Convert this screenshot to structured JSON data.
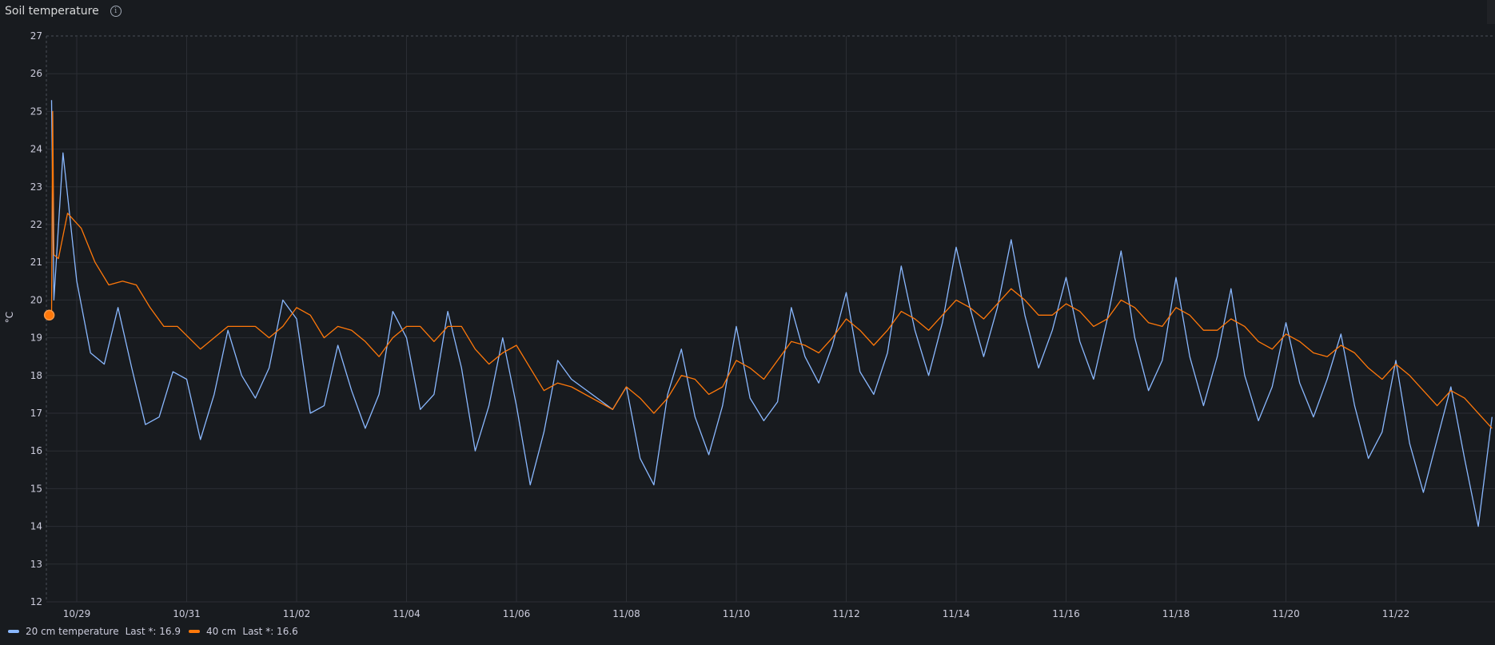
{
  "panel": {
    "title": "Soil temperature",
    "info_icon": "info-circle-icon"
  },
  "chart_data": {
    "type": "line",
    "title": "Soil temperature",
    "xlabel": "",
    "ylabel": "°C",
    "ylim": [
      12,
      27
    ],
    "y_ticks": [
      "27",
      "26",
      "25",
      "24",
      "23",
      "22",
      "21",
      "20",
      "19",
      "18",
      "17",
      "16",
      "15",
      "14",
      "13",
      "12"
    ],
    "x_ticks": [
      "10/29",
      "10/31",
      "11/02",
      "11/04",
      "11/06",
      "11/08",
      "11/10",
      "11/12",
      "11/14",
      "11/16",
      "11/18",
      "11/20",
      "11/22"
    ],
    "grid": true,
    "legend_position": "bottom-left",
    "colors": {
      "series_1": "#8ab8ff",
      "series_2": "#ff780a",
      "grid": "#2b2e34",
      "axis_text": "#ccccdc"
    },
    "series": [
      {
        "name": "20 cm temperature",
        "legend_last": "Last *: 16.9",
        "color": "#8ab8ff",
        "x": [
          "10/28 13:00",
          "10/28 14:00",
          "10/28 18:00",
          "10/29 00:00",
          "10/29 06:00",
          "10/29 12:00",
          "10/29 18:00",
          "10/30 00:00",
          "10/30 06:00",
          "10/30 12:00",
          "10/30 18:00",
          "10/31 00:00",
          "10/31 06:00",
          "10/31 12:00",
          "10/31 18:00",
          "11/01 00:00",
          "11/01 06:00",
          "11/01 12:00",
          "11/01 18:00",
          "11/02 00:00",
          "11/02 06:00",
          "11/02 12:00",
          "11/02 18:00",
          "11/03 00:00",
          "11/03 06:00",
          "11/03 12:00",
          "11/03 18:00",
          "11/04 00:00",
          "11/04 06:00",
          "11/04 12:00",
          "11/04 18:00",
          "11/05 00:00",
          "11/05 06:00",
          "11/05 12:00",
          "11/05 18:00",
          "11/06 00:00",
          "11/06 06:00",
          "11/06 12:00",
          "11/06 18:00",
          "11/07 00:00",
          "11/07 18:00",
          "11/08 00:00",
          "11/08 06:00",
          "11/08 12:00",
          "11/08 18:00",
          "11/09 00:00",
          "11/09 06:00",
          "11/09 12:00",
          "11/09 18:00",
          "11/10 00:00",
          "11/10 06:00",
          "11/10 12:00",
          "11/10 18:00",
          "11/11 00:00",
          "11/11 06:00",
          "11/11 12:00",
          "11/11 18:00",
          "11/12 00:00",
          "11/12 06:00",
          "11/12 12:00",
          "11/12 18:00",
          "11/13 00:00",
          "11/13 06:00",
          "11/13 12:00",
          "11/13 18:00",
          "11/14 00:00",
          "11/14 06:00",
          "11/14 12:00",
          "11/14 18:00",
          "11/15 00:00",
          "11/15 06:00",
          "11/15 12:00",
          "11/15 18:00",
          "11/16 00:00",
          "11/16 06:00",
          "11/16 12:00",
          "11/16 18:00",
          "11/17 00:00",
          "11/17 06:00",
          "11/17 12:00",
          "11/17 18:00",
          "11/18 00:00",
          "11/18 06:00",
          "11/18 12:00",
          "11/18 18:00",
          "11/19 00:00",
          "11/19 06:00",
          "11/19 12:00",
          "11/19 18:00",
          "11/20 00:00",
          "11/20 06:00",
          "11/20 12:00",
          "11/20 18:00",
          "11/21 00:00",
          "11/21 06:00",
          "11/21 12:00",
          "11/21 18:00",
          "11/22 00:00",
          "11/22 06:00",
          "11/22 12:00",
          "11/22 18:00",
          "11/23 00:00",
          "11/23 06:00",
          "11/23 12:00",
          "11/23 18:00"
        ],
        "y": [
          25.3,
          20.0,
          23.9,
          20.5,
          18.6,
          18.3,
          19.8,
          18.2,
          16.7,
          16.9,
          18.1,
          17.9,
          16.3,
          17.5,
          19.2,
          18.0,
          17.4,
          18.2,
          20.0,
          19.5,
          17.0,
          17.2,
          18.8,
          17.6,
          16.6,
          17.5,
          19.7,
          19.0,
          17.1,
          17.5,
          19.7,
          18.2,
          16.0,
          17.2,
          19.0,
          17.2,
          15.1,
          16.5,
          18.4,
          17.9,
          17.1,
          17.7,
          15.8,
          15.1,
          17.5,
          18.7,
          16.9,
          15.9,
          17.2,
          19.3,
          17.4,
          16.8,
          17.3,
          19.8,
          18.5,
          17.8,
          18.8,
          20.2,
          18.1,
          17.5,
          18.6,
          20.9,
          19.2,
          18.0,
          19.4,
          21.4,
          19.8,
          18.5,
          19.8,
          21.6,
          19.6,
          18.2,
          19.2,
          20.6,
          18.9,
          17.9,
          19.5,
          21.3,
          19.0,
          17.6,
          18.4,
          20.6,
          18.5,
          17.2,
          18.5,
          20.3,
          18.0,
          16.8,
          17.7,
          19.4,
          17.8,
          16.9,
          17.9,
          19.1,
          17.2,
          15.8,
          16.5,
          18.4,
          16.2,
          14.9,
          16.3,
          17.7,
          15.8,
          14.0,
          16.9
        ]
      },
      {
        "name": "40 cm",
        "legend_last": "Last *: 16.6",
        "color": "#ff780a",
        "x": [
          "10/28 12:00",
          "10/28 13:00",
          "10/28 13:30",
          "10/28 14:00",
          "10/28 16:00",
          "10/28 20:00",
          "10/29 02:00",
          "10/29 08:00",
          "10/29 14:00",
          "10/29 20:00",
          "10/30 02:00",
          "10/30 08:00",
          "10/30 14:00",
          "10/30 20:00",
          "10/31 06:00",
          "10/31 18:00",
          "11/01 06:00",
          "11/01 12:00",
          "11/01 18:00",
          "11/02 00:00",
          "11/02 06:00",
          "11/02 12:00",
          "11/02 18:00",
          "11/03 00:00",
          "11/03 06:00",
          "11/03 12:00",
          "11/03 18:00",
          "11/04 00:00",
          "11/04 06:00",
          "11/04 12:00",
          "11/04 18:00",
          "11/05 00:00",
          "11/05 06:00",
          "11/05 12:00",
          "11/05 18:00",
          "11/06 00:00",
          "11/06 06:00",
          "11/06 12:00",
          "11/06 18:00",
          "11/07 00:00",
          "11/07 18:00",
          "11/08 00:00",
          "11/08 06:00",
          "11/08 12:00",
          "11/08 18:00",
          "11/09 00:00",
          "11/09 06:00",
          "11/09 12:00",
          "11/09 18:00",
          "11/10 00:00",
          "11/10 06:00",
          "11/10 12:00",
          "11/10 18:00",
          "11/11 00:00",
          "11/11 06:00",
          "11/11 12:00",
          "11/11 18:00",
          "11/12 00:00",
          "11/12 06:00",
          "11/12 12:00",
          "11/12 18:00",
          "11/13 00:00",
          "11/13 06:00",
          "11/13 12:00",
          "11/13 18:00",
          "11/14 00:00",
          "11/14 06:00",
          "11/14 12:00",
          "11/14 18:00",
          "11/15 00:00",
          "11/15 06:00",
          "11/15 12:00",
          "11/15 18:00",
          "11/16 00:00",
          "11/16 06:00",
          "11/16 12:00",
          "11/16 18:00",
          "11/17 00:00",
          "11/17 06:00",
          "11/17 12:00",
          "11/17 18:00",
          "11/18 00:00",
          "11/18 06:00",
          "11/18 12:00",
          "11/18 18:00",
          "11/19 00:00",
          "11/19 06:00",
          "11/19 12:00",
          "11/19 18:00",
          "11/20 00:00",
          "11/20 06:00",
          "11/20 12:00",
          "11/20 18:00",
          "11/21 00:00",
          "11/21 06:00",
          "11/21 12:00",
          "11/21 18:00",
          "11/22 00:00",
          "11/22 06:00",
          "11/22 12:00",
          "11/22 18:00",
          "11/23 00:00",
          "11/23 06:00",
          "11/23 12:00",
          "11/23 18:00"
        ],
        "y": [
          19.6,
          19.6,
          25.0,
          21.2,
          21.1,
          22.3,
          21.9,
          21.0,
          20.4,
          20.5,
          20.4,
          19.8,
          19.3,
          19.3,
          18.7,
          19.3,
          19.3,
          19.0,
          19.3,
          19.8,
          19.6,
          19.0,
          19.3,
          19.2,
          18.9,
          18.5,
          19.0,
          19.3,
          19.3,
          18.9,
          19.3,
          19.3,
          18.7,
          18.3,
          18.6,
          18.8,
          18.2,
          17.6,
          17.8,
          17.7,
          17.1,
          17.7,
          17.4,
          17.0,
          17.4,
          18.0,
          17.9,
          17.5,
          17.7,
          18.4,
          18.2,
          17.9,
          18.4,
          18.9,
          18.8,
          18.6,
          19.0,
          19.5,
          19.2,
          18.8,
          19.2,
          19.7,
          19.5,
          19.2,
          19.6,
          20.0,
          19.8,
          19.5,
          19.9,
          20.3,
          20.0,
          19.6,
          19.6,
          19.9,
          19.7,
          19.3,
          19.5,
          20.0,
          19.8,
          19.4,
          19.3,
          19.8,
          19.6,
          19.2,
          19.2,
          19.5,
          19.3,
          18.9,
          18.7,
          19.1,
          18.9,
          18.6,
          18.5,
          18.8,
          18.6,
          18.2,
          17.9,
          18.3,
          18.0,
          17.6,
          17.2,
          17.6,
          17.4,
          17.0,
          16.6
        ]
      }
    ]
  },
  "legend": {
    "series_1_name": "20 cm temperature",
    "series_1_last": "Last *: 16.9",
    "series_2_name": "40 cm",
    "series_2_last": "Last *: 16.6"
  }
}
